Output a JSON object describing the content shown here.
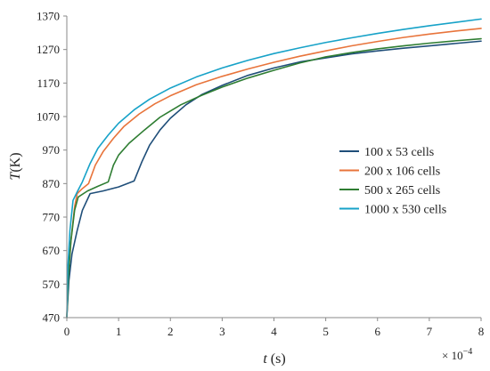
{
  "chart_data": {
    "type": "line",
    "title": "",
    "xlabel_var": "t",
    "xlabel_unit": " (s)",
    "ylabel_var": "T",
    "ylabel_unit": "(K)",
    "x_multiplier_label": "× 10",
    "x_multiplier_exp": "−4",
    "xlim": [
      0,
      8
    ],
    "ylim": [
      470,
      1370
    ],
    "xticks": [
      0,
      1,
      2,
      3,
      4,
      5,
      6,
      7,
      8
    ],
    "yticks": [
      470,
      570,
      670,
      770,
      870,
      970,
      1070,
      1170,
      1270,
      1370
    ],
    "grid": false,
    "legend_position": "right",
    "series": [
      {
        "name": "100 x 53 cells",
        "color": "#1f4e79",
        "points": [
          [
            0,
            470
          ],
          [
            0.04,
            580
          ],
          [
            0.1,
            660
          ],
          [
            0.2,
            730
          ],
          [
            0.3,
            790
          ],
          [
            0.45,
            840
          ],
          [
            0.7,
            848
          ],
          [
            1.0,
            860
          ],
          [
            1.3,
            878
          ],
          [
            1.45,
            935
          ],
          [
            1.6,
            985
          ],
          [
            1.8,
            1030
          ],
          [
            2.0,
            1065
          ],
          [
            2.3,
            1105
          ],
          [
            2.6,
            1135
          ],
          [
            3.0,
            1163
          ],
          [
            3.5,
            1193
          ],
          [
            4.0,
            1215
          ],
          [
            4.5,
            1233
          ],
          [
            5.0,
            1245
          ],
          [
            5.5,
            1257
          ],
          [
            6.0,
            1266
          ],
          [
            6.5,
            1274
          ],
          [
            7.0,
            1281
          ],
          [
            7.5,
            1288
          ],
          [
            8.0,
            1295
          ]
        ]
      },
      {
        "name": "200 x 106 cells",
        "color": "#e8743b",
        "points": [
          [
            0,
            470
          ],
          [
            0.03,
            600
          ],
          [
            0.08,
            700
          ],
          [
            0.15,
            800
          ],
          [
            0.2,
            840
          ],
          [
            0.3,
            855
          ],
          [
            0.42,
            870
          ],
          [
            0.55,
            925
          ],
          [
            0.7,
            965
          ],
          [
            0.9,
            1005
          ],
          [
            1.1,
            1040
          ],
          [
            1.4,
            1078
          ],
          [
            1.7,
            1108
          ],
          [
            2.0,
            1132
          ],
          [
            2.5,
            1165
          ],
          [
            3.0,
            1190
          ],
          [
            3.5,
            1212
          ],
          [
            4.0,
            1232
          ],
          [
            4.5,
            1250
          ],
          [
            5.0,
            1266
          ],
          [
            5.5,
            1281
          ],
          [
            6.0,
            1294
          ],
          [
            6.5,
            1306
          ],
          [
            7.0,
            1316
          ],
          [
            7.5,
            1325
          ],
          [
            8.0,
            1333
          ]
        ]
      },
      {
        "name": "500 x 265 cells",
        "color": "#2e7d32",
        "points": [
          [
            0,
            470
          ],
          [
            0.03,
            590
          ],
          [
            0.08,
            700
          ],
          [
            0.15,
            790
          ],
          [
            0.22,
            830
          ],
          [
            0.4,
            848
          ],
          [
            0.6,
            862
          ],
          [
            0.8,
            875
          ],
          [
            0.9,
            925
          ],
          [
            1.0,
            955
          ],
          [
            1.2,
            990
          ],
          [
            1.5,
            1030
          ],
          [
            1.8,
            1068
          ],
          [
            2.2,
            1105
          ],
          [
            2.6,
            1133
          ],
          [
            3.0,
            1158
          ],
          [
            3.5,
            1185
          ],
          [
            4.0,
            1208
          ],
          [
            4.5,
            1230
          ],
          [
            5.0,
            1248
          ],
          [
            5.5,
            1261
          ],
          [
            6.0,
            1272
          ],
          [
            6.5,
            1281
          ],
          [
            7.0,
            1289
          ],
          [
            7.5,
            1296
          ],
          [
            8.0,
            1302
          ]
        ]
      },
      {
        "name": "1000 x 530 cells",
        "color": "#17a2c8",
        "points": [
          [
            0,
            470
          ],
          [
            0.02,
            620
          ],
          [
            0.06,
            730
          ],
          [
            0.12,
            820
          ],
          [
            0.2,
            845
          ],
          [
            0.3,
            875
          ],
          [
            0.45,
            930
          ],
          [
            0.6,
            975
          ],
          [
            0.8,
            1015
          ],
          [
            1.0,
            1050
          ],
          [
            1.3,
            1090
          ],
          [
            1.6,
            1122
          ],
          [
            2.0,
            1155
          ],
          [
            2.5,
            1188
          ],
          [
            3.0,
            1215
          ],
          [
            3.5,
            1238
          ],
          [
            4.0,
            1258
          ],
          [
            4.5,
            1275
          ],
          [
            5.0,
            1291
          ],
          [
            5.5,
            1305
          ],
          [
            6.0,
            1318
          ],
          [
            6.5,
            1330
          ],
          [
            7.0,
            1341
          ],
          [
            7.5,
            1351
          ],
          [
            8.0,
            1361
          ]
        ]
      }
    ]
  }
}
